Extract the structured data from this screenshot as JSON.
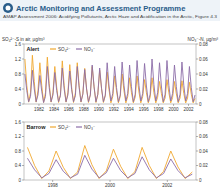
{
  "header": {
    "title": "Arctic Monitoring and Assessment Programme",
    "subtitle": "AMAP Assessment 2006: Acidifying Pollutants, Arctic Haze and Acidification in the Arctic, Figure 4.3"
  },
  "chart_data": [
    {
      "type": "line",
      "title": "Alert",
      "y_label": "SO₄²⁻-S in air, µg/m³",
      "y2_label": "NO₃⁻-N, µg/m³",
      "legend": "top",
      "xlim": [
        1980,
        2003
      ],
      "xticks": [
        1982,
        1984,
        1986,
        1988,
        1990,
        1992,
        1994,
        1996,
        1998,
        2000,
        2002
      ],
      "ylim": [
        0,
        1.6
      ],
      "yticks": [
        0,
        0.4,
        0.8,
        1.2,
        1.6
      ],
      "y2lim": [
        0,
        0.08
      ],
      "y2ticks": [
        0,
        0.02,
        0.04,
        0.06,
        0.08
      ],
      "x": [
        1980.12,
        1980.37,
        1980.62,
        1980.87,
        1981.12,
        1981.37,
        1981.62,
        1981.87,
        1982.12,
        1982.37,
        1982.62,
        1982.87,
        1983.12,
        1983.37,
        1983.62,
        1983.87,
        1984.12,
        1984.37,
        1984.62,
        1984.87,
        1985.12,
        1985.37,
        1985.62,
        1985.87,
        1986.12,
        1986.37,
        1986.62,
        1986.87,
        1987.12,
        1987.37,
        1987.62,
        1987.87,
        1988.12,
        1988.37,
        1988.62,
        1988.87,
        1989.12,
        1989.37,
        1989.62,
        1989.87,
        1990.12,
        1990.37,
        1990.62,
        1990.87,
        1991.12,
        1991.37,
        1991.62,
        1991.87,
        1992.12,
        1992.37,
        1992.62,
        1992.87,
        1993.12,
        1993.37,
        1993.62,
        1993.87,
        1994.12,
        1994.37,
        1994.62,
        1994.87,
        1995.12,
        1995.37,
        1995.62,
        1995.87,
        1996.12,
        1996.37,
        1996.62,
        1996.87,
        1997.12,
        1997.37,
        1997.62,
        1997.87,
        1998.12,
        1998.37,
        1998.62,
        1998.87,
        1999.12,
        1999.37,
        1999.62,
        1999.87,
        2000.12,
        2000.37,
        2000.62,
        2000.87,
        2001.12,
        2001.37,
        2001.62,
        2001.87,
        2002.12,
        2002.37,
        2002.62,
        2002.87
      ],
      "series": [
        {
          "name": "SO₄²⁻",
          "color": "#f0a830",
          "values": [
            1.2,
            0.5,
            0.05,
            0.3,
            1.3,
            0.6,
            0.05,
            0.35,
            1.1,
            0.5,
            0.04,
            0.3,
            1.25,
            0.55,
            0.05,
            0.3,
            1.0,
            0.45,
            0.04,
            0.25,
            1.15,
            0.5,
            0.05,
            0.3,
            1.05,
            0.45,
            0.04,
            0.3,
            1.1,
            0.5,
            0.05,
            0.28,
            0.95,
            0.4,
            0.04,
            0.25,
            1.0,
            0.45,
            0.04,
            0.25,
            0.9,
            0.4,
            0.04,
            0.22,
            0.85,
            0.38,
            0.03,
            0.2,
            0.75,
            0.35,
            0.03,
            0.2,
            0.8,
            0.35,
            0.03,
            0.2,
            0.7,
            0.3,
            0.03,
            0.18,
            0.75,
            0.32,
            0.03,
            0.2,
            0.65,
            0.3,
            0.03,
            0.18,
            0.7,
            0.3,
            0.03,
            0.18,
            0.6,
            0.28,
            0.03,
            0.16,
            0.65,
            0.3,
            0.03,
            0.17,
            0.6,
            0.27,
            0.03,
            0.16,
            0.62,
            0.28,
            0.03,
            0.16,
            0.58,
            0.26,
            0.03,
            0.15
          ]
        },
        {
          "name": "NO₃⁻",
          "color": "#8c6da8",
          "axis": "y2",
          "values": [
            0.04,
            0.018,
            0.003,
            0.01,
            0.045,
            0.02,
            0.003,
            0.012,
            0.038,
            0.017,
            0.002,
            0.01,
            0.05,
            0.022,
            0.003,
            0.012,
            0.042,
            0.018,
            0.003,
            0.011,
            0.048,
            0.02,
            0.003,
            0.012,
            0.044,
            0.019,
            0.003,
            0.011,
            0.05,
            0.022,
            0.003,
            0.013,
            0.046,
            0.02,
            0.003,
            0.012,
            0.052,
            0.023,
            0.003,
            0.013,
            0.048,
            0.021,
            0.003,
            0.012,
            0.055,
            0.024,
            0.004,
            0.014,
            0.05,
            0.022,
            0.003,
            0.012,
            0.056,
            0.025,
            0.004,
            0.014,
            0.052,
            0.023,
            0.003,
            0.013,
            0.058,
            0.025,
            0.004,
            0.014,
            0.054,
            0.024,
            0.003,
            0.013,
            0.06,
            0.026,
            0.004,
            0.015,
            0.055,
            0.024,
            0.003,
            0.013,
            0.058,
            0.025,
            0.004,
            0.014,
            0.052,
            0.023,
            0.003,
            0.013,
            0.056,
            0.025,
            0.004,
            0.014,
            0.05,
            0.022,
            0.003,
            0.012
          ]
        }
      ]
    },
    {
      "type": "line",
      "title": "Barrow",
      "legend": "top",
      "xlim": [
        1997,
        2003
      ],
      "xticks": [
        1998,
        2000,
        2002
      ],
      "ylim": [
        0,
        1.6
      ],
      "yticks": [
        0,
        0.4,
        0.8,
        1.2,
        1.6
      ],
      "y2lim": [
        0,
        0.08
      ],
      "y2ticks": [
        0,
        0.02,
        0.04,
        0.06,
        0.08
      ],
      "x": [
        1997.12,
        1997.37,
        1997.62,
        1997.87,
        1998.12,
        1998.37,
        1998.62,
        1998.87,
        1999.12,
        1999.37,
        1999.62,
        1999.87,
        2000.12,
        2000.37,
        2000.62,
        2000.87,
        2001.12,
        2001.37,
        2001.62,
        2001.87,
        2002.12,
        2002.37,
        2002.62,
        2002.87
      ],
      "series": [
        {
          "name": "SO₄²⁻",
          "color": "#f0a830",
          "values": [
            0.9,
            0.4,
            0.04,
            0.25,
            0.8,
            0.35,
            0.04,
            0.22,
            0.95,
            0.42,
            0.04,
            0.25,
            0.85,
            0.38,
            0.04,
            0.23,
            0.9,
            0.4,
            0.04,
            0.24,
            0.8,
            0.36,
            0.04,
            0.22
          ]
        },
        {
          "name": "NO₃⁻",
          "color": "#8c6da8",
          "axis": "y2",
          "values": [
            0.03,
            0.014,
            0.003,
            0.009,
            0.028,
            0.012,
            0.003,
            0.008,
            0.034,
            0.015,
            0.003,
            0.01,
            0.03,
            0.013,
            0.003,
            0.009,
            0.032,
            0.014,
            0.003,
            0.009,
            0.029,
            0.013,
            0.003,
            0.008
          ]
        }
      ]
    }
  ]
}
